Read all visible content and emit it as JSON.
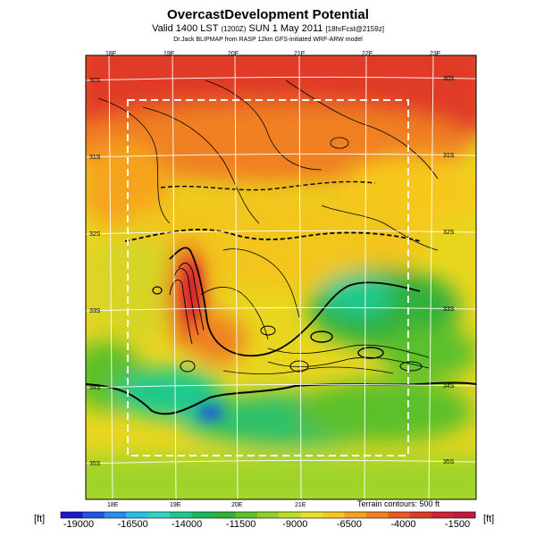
{
  "header": {
    "title": "OvercastDevelopment Potential",
    "subtitle_main": "Valid 1400 LST",
    "subtitle_utc": "(1200Z)",
    "subtitle_date": "SUN 1 May 2011",
    "subtitle_fcst": "[18hrFcst@2159z]",
    "credit": "Dr.Jack BLIPMAP from RASP 12km GFS-initiated WRF-ARW model"
  },
  "map": {
    "top_lon_labels": [
      "18E",
      "19E",
      "20E",
      "21E",
      "22E",
      "23E"
    ],
    "bottom_lon_labels": [
      "18E",
      "19E",
      "20E",
      "21E"
    ],
    "left_lat_labels": [
      "30S",
      "31S",
      "32S",
      "33S",
      "34S",
      "35S"
    ],
    "right_lat_labels": [
      "30S",
      "31S",
      "32S",
      "33S",
      "34S",
      "35S"
    ],
    "terrain_note": "Terrain contours: 500 ft"
  },
  "colorbar": {
    "unit_left": "[ft]",
    "unit_right": "[ft]",
    "tick_labels": [
      "-19000",
      "-16500",
      "-14000",
      "-11500",
      "-9000",
      "-6500",
      "-4000",
      "-1500"
    ],
    "colors": [
      "#1a1ad0",
      "#1f54e6",
      "#2a8cf0",
      "#2bbde6",
      "#2ad6c0",
      "#1fc98c",
      "#1bb85a",
      "#30b03a",
      "#5cc02a",
      "#8ed02a",
      "#c0dc28",
      "#e6e028",
      "#f6c81e",
      "#f5a41a",
      "#f08020",
      "#e85a20",
      "#e03a26",
      "#d42030",
      "#c41a3a"
    ],
    "selected_range": "-19000 to -1500"
  }
}
